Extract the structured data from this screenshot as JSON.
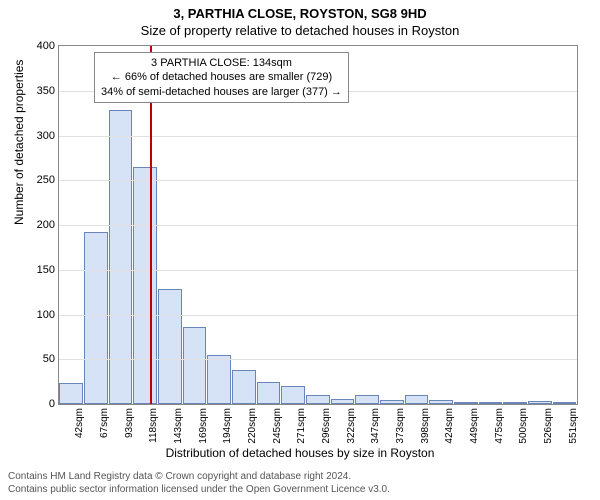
{
  "title_main": "3, PARTHIA CLOSE, ROYSTON, SG8 9HD",
  "title_sub": "Size of property relative to detached houses in Royston",
  "y_axis_label": "Number of detached properties",
  "x_axis_label": "Distribution of detached houses by size in Royston",
  "chart": {
    "type": "histogram",
    "y_max": 400,
    "y_tick_step": 50,
    "y_ticks": [
      0,
      50,
      100,
      150,
      200,
      250,
      300,
      350,
      400
    ],
    "bar_fill": "#d6e2f5",
    "bar_stroke": "#6a86b8",
    "grid_color": "#e0e0e0",
    "border_color": "#888888",
    "background": "#ffffff",
    "x_labels": [
      "42sqm",
      "67sqm",
      "93sqm",
      "118sqm",
      "143sqm",
      "169sqm",
      "194sqm",
      "220sqm",
      "245sqm",
      "271sqm",
      "296sqm",
      "322sqm",
      "347sqm",
      "373sqm",
      "398sqm",
      "424sqm",
      "449sqm",
      "475sqm",
      "500sqm",
      "526sqm",
      "551sqm"
    ],
    "values": [
      24,
      192,
      328,
      265,
      128,
      86,
      55,
      38,
      25,
      20,
      10,
      6,
      10,
      5,
      10,
      4,
      2,
      1,
      1,
      3,
      2
    ]
  },
  "marker": {
    "color": "#c00000",
    "position_index": 3.7
  },
  "annotation": {
    "line1": "3 PARTHIA CLOSE: 134sqm",
    "line2": "← 66% of detached houses are smaller (729)",
    "line3": "34% of semi-detached houses are larger (377) →"
  },
  "attribution": {
    "line1": "Contains HM Land Registry data © Crown copyright and database right 2024.",
    "line2": "Contains public sector information licensed under the Open Government Licence v3.0."
  }
}
